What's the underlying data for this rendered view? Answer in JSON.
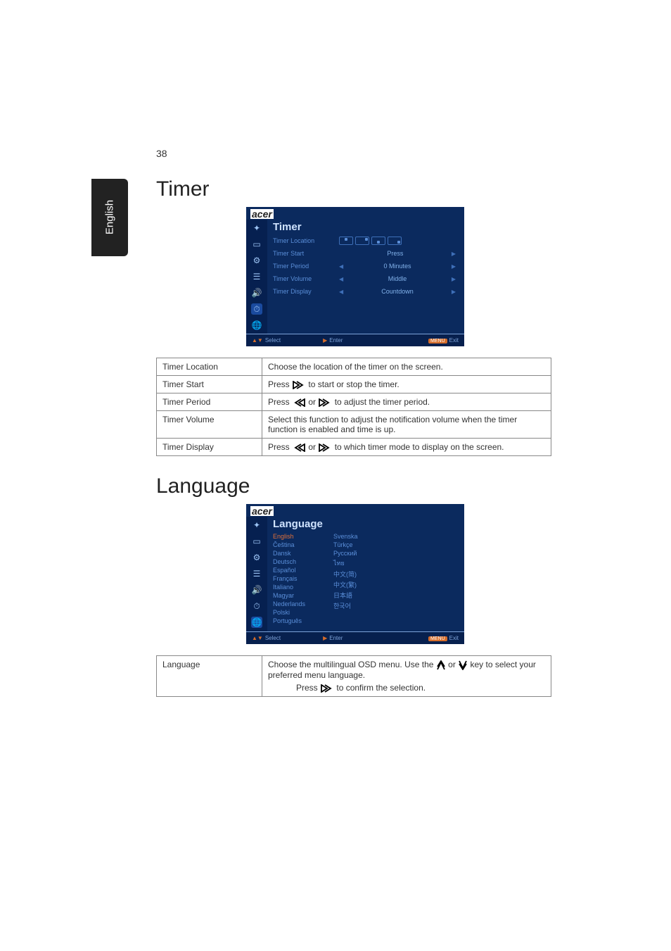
{
  "page": {
    "number": "38",
    "sideTab": "English"
  },
  "timer": {
    "heading": "Timer",
    "osd": {
      "logo": "acer",
      "title": "Timer",
      "rows": [
        {
          "label": "Timer Location",
          "type": "chips"
        },
        {
          "label": "Timer Start",
          "value": "Press"
        },
        {
          "label": "Timer Period",
          "value": "0   Minutes"
        },
        {
          "label": "Timer Volume",
          "value": "Middle"
        },
        {
          "label": "Timer Display",
          "value": "Countdown"
        }
      ],
      "footer": {
        "select": "Select",
        "enter": "Enter",
        "exit": "Exit",
        "menu": "MENU"
      }
    },
    "table": [
      {
        "key": "Timer Location",
        "text": "Choose the location of the timer on the screen."
      },
      {
        "key": "Timer Start",
        "pressRight": true,
        "textAfter": " to start or stop the timer."
      },
      {
        "key": "Timer Period",
        "pressLR": true,
        "textAfter": " to adjust the timer period."
      },
      {
        "key": "Timer Volume",
        "text": "Select this function to adjust the notification volume when the timer function is enabled and time is up."
      },
      {
        "key": "Timer Display",
        "pressLR": true,
        "textAfter": " to which timer mode to display on the screen."
      }
    ]
  },
  "language": {
    "heading": "Language",
    "osd": {
      "logo": "acer",
      "title": "Language",
      "col1": [
        "English",
        "Čeština",
        "Dansk",
        "Deutsch",
        "Español",
        "Français",
        "Italiano",
        "Magyar",
        "Nederlands",
        "Polski",
        "Português"
      ],
      "col1hl": 0,
      "col2": [
        "Svenska",
        "Türkçe",
        "Русский",
        "ไทย",
        "中文(简)",
        "中文(繁)",
        "日本語",
        "한국어"
      ],
      "footer": {
        "select": "Select",
        "enter": "Enter",
        "exit": "Exit",
        "menu": "MENU"
      }
    },
    "table": {
      "key": "Language",
      "line1a": "Choose the multilingual OSD menu. Use the ",
      "line1b": " or ",
      "line1c": " key to select your preferred menu language.",
      "press": "Press ",
      "pressAfter": " to confirm the selection."
    }
  },
  "ui": {
    "pressWord": "Press ",
    "orWord": " or "
  }
}
